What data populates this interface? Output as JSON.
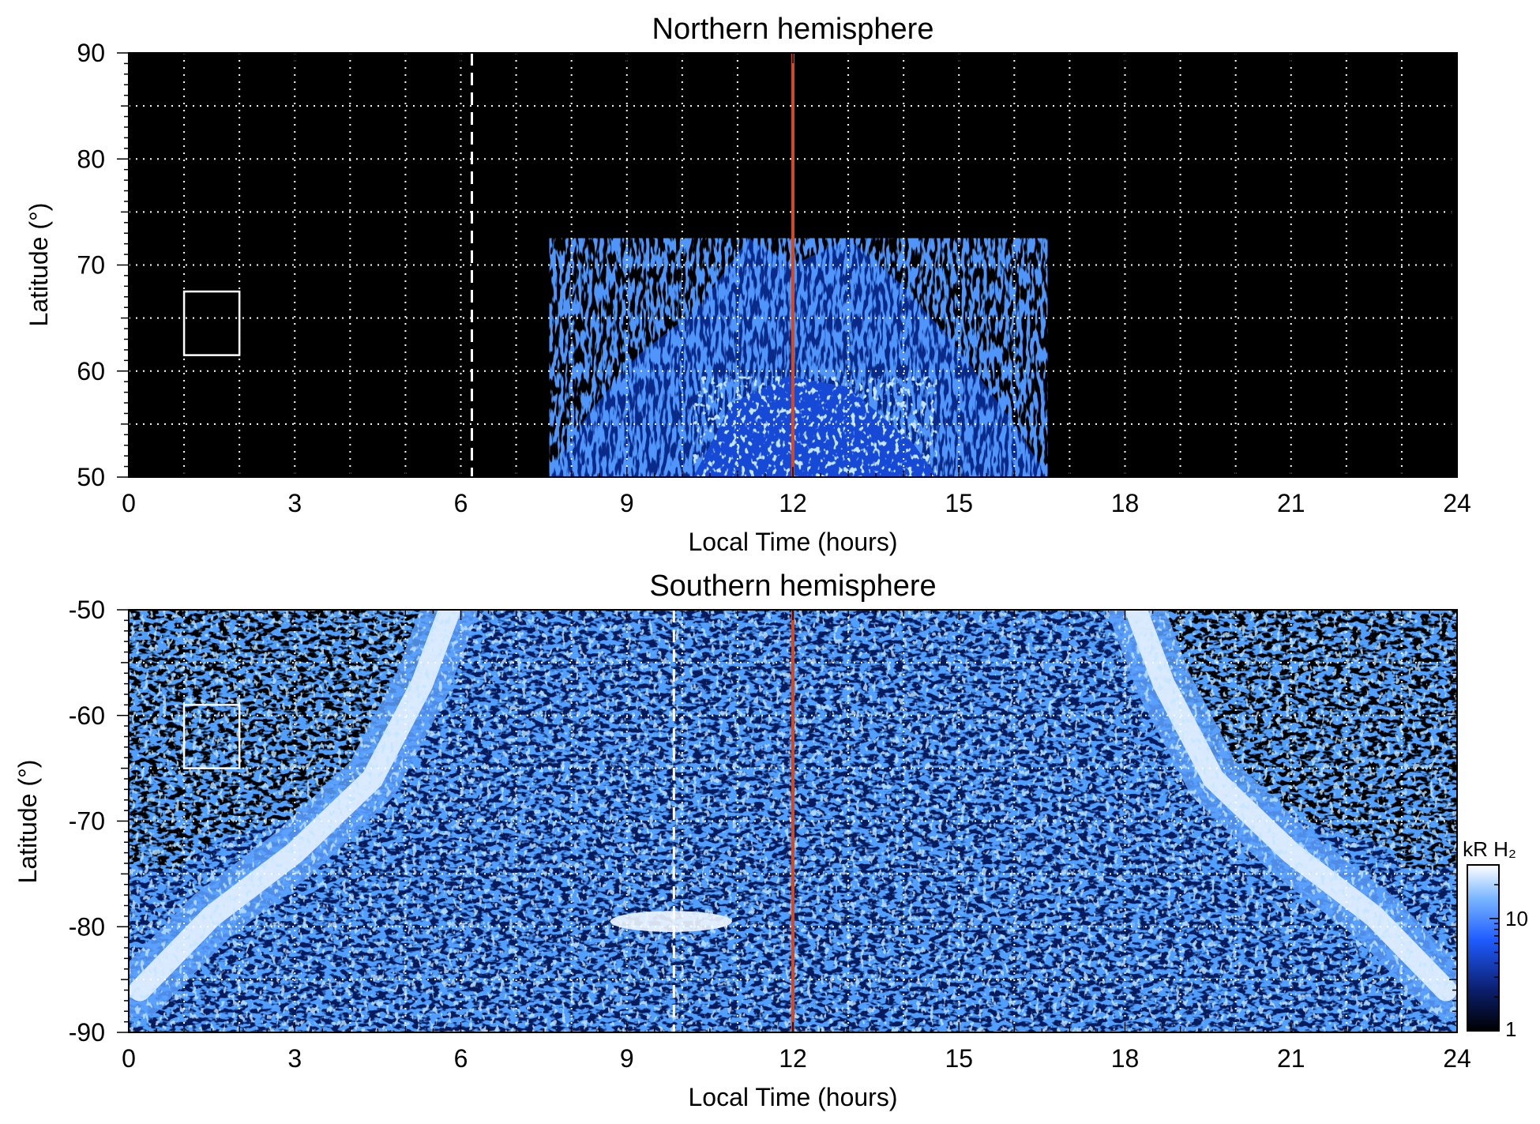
{
  "chart_data": [
    {
      "type": "heatmap",
      "title": "Northern hemisphere",
      "xlabel": "Local Time (hours)",
      "ylabel": "Latitude (°)",
      "xlim": [
        0,
        24
      ],
      "ylim": [
        50,
        90
      ],
      "xticks": [
        0,
        3,
        6,
        9,
        12,
        15,
        18,
        21,
        24
      ],
      "xtick_labels": [
        "0",
        "3",
        "6",
        "9",
        "12",
        "15",
        "18",
        "21",
        "24"
      ],
      "yticks": [
        50,
        60,
        70,
        80,
        90
      ],
      "ytick_labels": [
        "50",
        "60",
        "70",
        "80",
        "90"
      ],
      "grid": true,
      "grid_x_step": 1,
      "grid_y_step": 5,
      "emission_region": {
        "lt_start": 7.6,
        "lt_end": 16.6,
        "lat_edge": [
          [
            7.6,
            50
          ],
          [
            8.3,
            56
          ],
          [
            9.2,
            61.5
          ],
          [
            10.3,
            66
          ],
          [
            11.2,
            72.5
          ],
          [
            12.0,
            70
          ],
          [
            13.0,
            72.5
          ],
          [
            14.0,
            68
          ],
          [
            15.0,
            62
          ],
          [
            16.0,
            55
          ],
          [
            16.6,
            50
          ]
        ],
        "bright_core": [
          [
            10.2,
            50
          ],
          [
            10.9,
            57
          ],
          [
            11.9,
            59.5
          ],
          [
            13.0,
            58.5
          ],
          [
            14.2,
            53
          ],
          [
            14.6,
            50
          ]
        ]
      },
      "noon_line_lt": 12,
      "dashed_line_lt": 6.2,
      "box": {
        "lt": [
          1,
          2
        ],
        "lat": [
          61.5,
          67.5
        ]
      },
      "colors": {
        "background": "#000000",
        "noon_line": "#d24a21",
        "markers": "#ffffff"
      }
    },
    {
      "type": "heatmap",
      "title": "Southern hemisphere",
      "xlabel": "Local Time (hours)",
      "ylabel": "Latitude (°)",
      "xlim": [
        0,
        24
      ],
      "ylim": [
        -90,
        -50
      ],
      "xticks": [
        0,
        3,
        6,
        9,
        12,
        15,
        18,
        21,
        24
      ],
      "xtick_labels": [
        "0",
        "3",
        "6",
        "9",
        "12",
        "15",
        "18",
        "21",
        "24"
      ],
      "yticks": [
        -90,
        -80,
        -70,
        -60,
        -50
      ],
      "ytick_labels": [
        "-90",
        "-80",
        "-70",
        "-60",
        "-50"
      ],
      "grid": true,
      "grid_x_step": 1,
      "grid_y_step": 5,
      "emission_region": {
        "left_boundary": [
          [
            0,
            -74
          ],
          [
            0.8,
            -75
          ],
          [
            1.5,
            -72
          ],
          [
            2.8,
            -70
          ],
          [
            4.0,
            -67
          ],
          [
            4.9,
            -61
          ],
          [
            5.5,
            -54
          ],
          [
            5.9,
            -50
          ]
        ],
        "right_boundary": [
          [
            18.1,
            -50
          ],
          [
            18.6,
            -54
          ],
          [
            19.2,
            -61
          ],
          [
            20.1,
            -67
          ],
          [
            21.3,
            -70
          ],
          [
            22.5,
            -72
          ],
          [
            23.2,
            -75
          ],
          [
            24,
            -74
          ]
        ],
        "bright_arc_left": [
          [
            0.2,
            -86
          ],
          [
            1.5,
            -79
          ],
          [
            3.0,
            -73
          ],
          [
            4.4,
            -66
          ],
          [
            5.3,
            -57
          ],
          [
            5.8,
            -50
          ]
        ],
        "bright_arc_right": [
          [
            18.2,
            -50
          ],
          [
            18.7,
            -57
          ],
          [
            19.6,
            -66
          ],
          [
            21.0,
            -73
          ],
          [
            22.5,
            -79
          ],
          [
            23.8,
            -86
          ]
        ],
        "bright_spot": {
          "lt": [
            8.7,
            10.9
          ],
          "lat": [
            -80.5,
            -78.5
          ]
        }
      },
      "noon_line_lt": 12,
      "dashed_line_lt": 9.85,
      "box": {
        "lt": [
          1,
          2
        ],
        "lat": [
          -65,
          -59
        ]
      },
      "colorbar": {
        "label": "kR H₂",
        "ticks": [
          1,
          10
        ],
        "tick_labels": [
          "1",
          "10"
        ],
        "min": 1,
        "max": 30,
        "scale": "log"
      },
      "colors": {
        "background": "#000000",
        "noon_line": "#d24a21",
        "markers": "#ffffff",
        "colormap": [
          "#000000",
          "#0b1f6e",
          "#1f5cff",
          "#7ab7ff",
          "#ffffff"
        ]
      }
    }
  ]
}
